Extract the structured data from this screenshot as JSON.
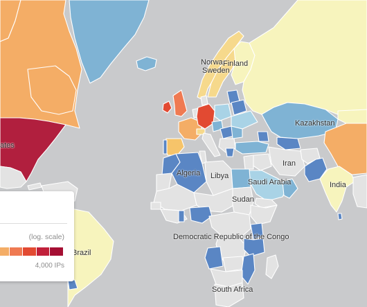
{
  "map": {
    "labels": {
      "usa": "ates",
      "norway": "Norwa",
      "sweden": "Sweden",
      "finland": "Finland",
      "kazakhstan": "Kazakhstan",
      "algeria": "Algeria",
      "libya": "Libya",
      "iran": "Iran",
      "saudi_arabia": "Saudi Arabia",
      "india": "India",
      "sudan": "Sudan",
      "brazil": "Brazil",
      "drc": "Democratic Republic of the Congo",
      "south_africa": "South Africa"
    },
    "colors": {
      "ocean": "#c9cacc",
      "no_data": "#e3e3e3",
      "pale_yellow": "#f7f4bd",
      "light_blue": "#a9d3e6",
      "mid_blue": "#7fb3d4",
      "blue": "#5a86c4",
      "orange": "#f4ad66",
      "red_orange": "#ef7a52",
      "red": "#e24a32",
      "dark_red": "#c1203a",
      "crimson": "#b11f3e"
    }
  },
  "legend": {
    "scale_label": "(log. scale)",
    "max_label": "4,000 IPs",
    "colors": [
      "#f4ad66",
      "#ef7a52",
      "#e24a32",
      "#c1203a",
      "#a50f33"
    ]
  }
}
